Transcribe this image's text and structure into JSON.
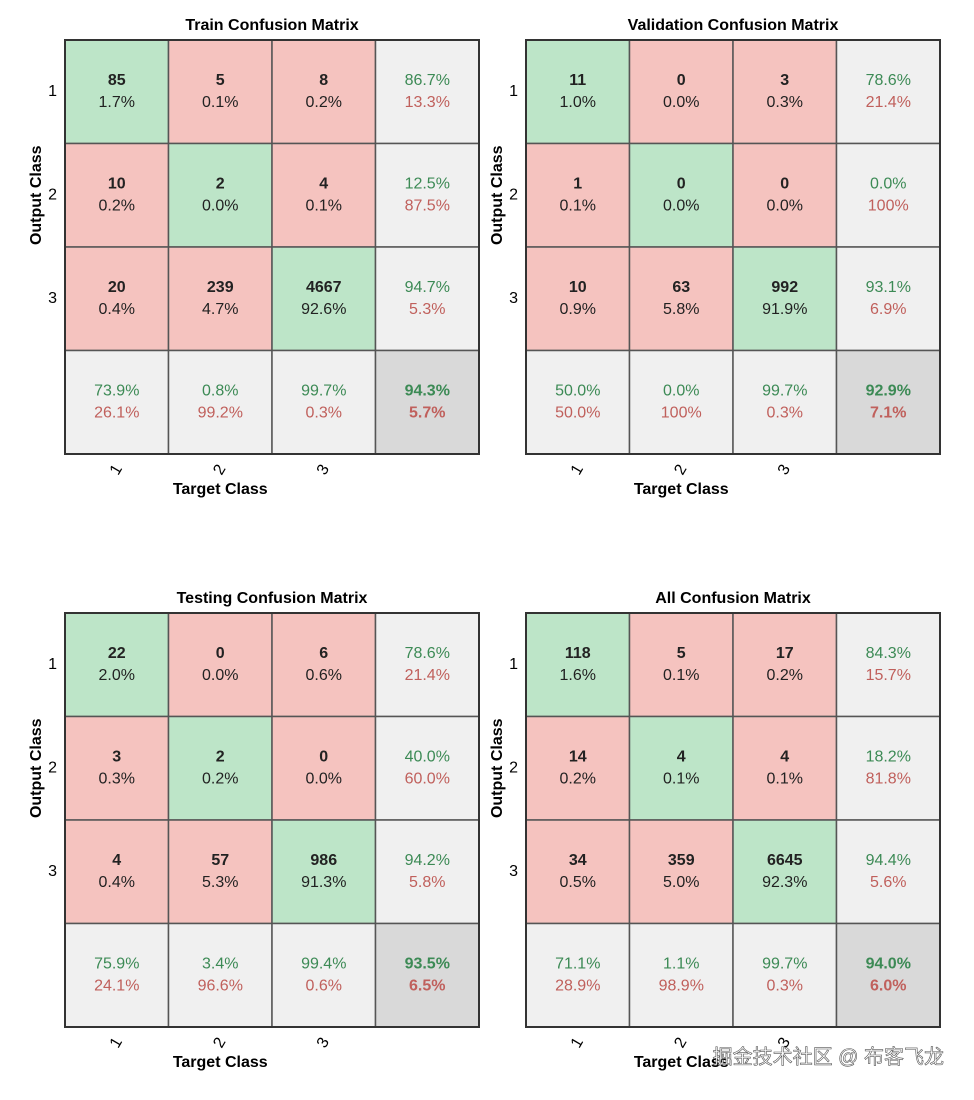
{
  "chart_data": [
    {
      "type": "confusion-matrix",
      "title": "Train Confusion Matrix",
      "xlabel": "Target Class",
      "ylabel": "Output Class",
      "classes": [
        "1",
        "2",
        "3"
      ],
      "counts": [
        [
          85,
          5,
          8
        ],
        [
          10,
          2,
          4
        ],
        [
          20,
          239,
          4667
        ]
      ],
      "percents": [
        [
          "1.7%",
          "0.1%",
          "0.2%"
        ],
        [
          "0.2%",
          "0.0%",
          "0.1%"
        ],
        [
          "0.4%",
          "4.7%",
          "92.6%"
        ]
      ],
      "row_summary": [
        [
          "86.7%",
          "13.3%"
        ],
        [
          "12.5%",
          "87.5%"
        ],
        [
          "94.7%",
          "5.3%"
        ]
      ],
      "col_summary": [
        [
          "73.9%",
          "26.1%"
        ],
        [
          "0.8%",
          "99.2%"
        ],
        [
          "99.7%",
          "0.3%"
        ]
      ],
      "overall": [
        "94.3%",
        "5.7%"
      ]
    },
    {
      "type": "confusion-matrix",
      "title": "Validation Confusion Matrix",
      "xlabel": "Target Class",
      "ylabel": "Output Class",
      "classes": [
        "1",
        "2",
        "3"
      ],
      "counts": [
        [
          11,
          0,
          3
        ],
        [
          1,
          0,
          0
        ],
        [
          10,
          63,
          992
        ]
      ],
      "percents": [
        [
          "1.0%",
          "0.0%",
          "0.3%"
        ],
        [
          "0.1%",
          "0.0%",
          "0.0%"
        ],
        [
          "0.9%",
          "5.8%",
          "91.9%"
        ]
      ],
      "row_summary": [
        [
          "78.6%",
          "21.4%"
        ],
        [
          "0.0%",
          "100%"
        ],
        [
          "93.1%",
          "6.9%"
        ]
      ],
      "col_summary": [
        [
          "50.0%",
          "50.0%"
        ],
        [
          "0.0%",
          "100%"
        ],
        [
          "99.7%",
          "0.3%"
        ]
      ],
      "overall": [
        "92.9%",
        "7.1%"
      ]
    },
    {
      "type": "confusion-matrix",
      "title": "Testing Confusion Matrix",
      "xlabel": "Target Class",
      "ylabel": "Output Class",
      "classes": [
        "1",
        "2",
        "3"
      ],
      "counts": [
        [
          22,
          0,
          6
        ],
        [
          3,
          2,
          0
        ],
        [
          4,
          57,
          986
        ]
      ],
      "percents": [
        [
          "2.0%",
          "0.0%",
          "0.6%"
        ],
        [
          "0.3%",
          "0.2%",
          "0.0%"
        ],
        [
          "0.4%",
          "5.3%",
          "91.3%"
        ]
      ],
      "row_summary": [
        [
          "78.6%",
          "21.4%"
        ],
        [
          "40.0%",
          "60.0%"
        ],
        [
          "94.2%",
          "5.8%"
        ]
      ],
      "col_summary": [
        [
          "75.9%",
          "24.1%"
        ],
        [
          "3.4%",
          "96.6%"
        ],
        [
          "99.4%",
          "0.6%"
        ]
      ],
      "overall": [
        "93.5%",
        "6.5%"
      ]
    },
    {
      "type": "confusion-matrix",
      "title": "All Confusion Matrix",
      "xlabel": "Target Class",
      "ylabel": "Output Class",
      "classes": [
        "1",
        "2",
        "3"
      ],
      "counts": [
        [
          118,
          5,
          17
        ],
        [
          14,
          4,
          4
        ],
        [
          34,
          359,
          6645
        ]
      ],
      "percents": [
        [
          "1.6%",
          "0.1%",
          "0.2%"
        ],
        [
          "0.2%",
          "0.1%",
          "0.1%"
        ],
        [
          "0.5%",
          "5.0%",
          "92.3%"
        ]
      ],
      "row_summary": [
        [
          "84.3%",
          "15.7%"
        ],
        [
          "18.2%",
          "81.8%"
        ],
        [
          "94.4%",
          "5.6%"
        ]
      ],
      "col_summary": [
        [
          "71.1%",
          "28.9%"
        ],
        [
          "1.1%",
          "98.9%"
        ],
        [
          "99.7%",
          "0.3%"
        ]
      ],
      "overall": [
        "94.0%",
        "6.0%"
      ]
    }
  ],
  "colors": {
    "correct": "#bde5c8",
    "wrong": "#f5c3bf",
    "summary": "#f0f0f0",
    "overall": "#d9d9d9",
    "good_text": "#3c8a55",
    "bad_text": "#c0605c"
  },
  "watermark": "掘金技术社区 @ 布客飞龙"
}
